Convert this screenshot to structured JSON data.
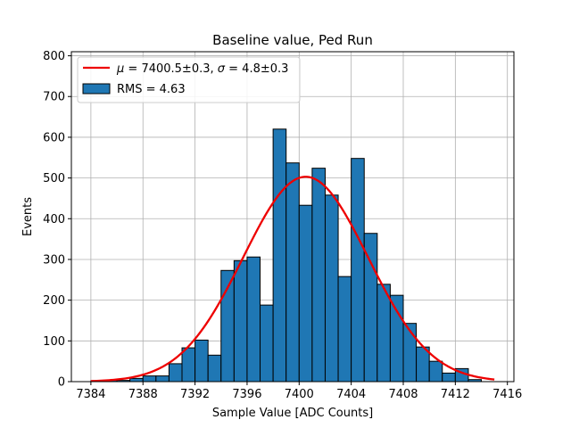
{
  "chart_data": {
    "type": "bar",
    "title": "Baseline value, Ped Run",
    "xlabel": "Sample Value [ADC Counts]",
    "ylabel": "Events",
    "xlim": [
      7382.5,
      7416.5
    ],
    "ylim": [
      0,
      810
    ],
    "xticks": [
      7384,
      7388,
      7392,
      7396,
      7400,
      7404,
      7408,
      7412,
      7416
    ],
    "yticks": [
      0,
      100,
      200,
      300,
      400,
      500,
      600,
      700,
      800
    ],
    "grid": true,
    "legend_position": "top-left",
    "histogram": {
      "name": "RMS = 4.63",
      "color": "#1f77b4",
      "bin_edges": [
        7384,
        7385,
        7386,
        7387,
        7388,
        7389,
        7390,
        7391,
        7392,
        7393,
        7394,
        7395,
        7396,
        7397,
        7398,
        7399,
        7400,
        7401,
        7402,
        7403,
        7404,
        7405,
        7406,
        7407,
        7408,
        7409,
        7410,
        7411,
        7412,
        7413,
        7414
      ],
      "counts": [
        2,
        3,
        3,
        8,
        14,
        14,
        44,
        83,
        102,
        65,
        273,
        297,
        306,
        188,
        620,
        537,
        433,
        524,
        458,
        258,
        548,
        364,
        239,
        212,
        143,
        85,
        50,
        21,
        32,
        5
      ]
    },
    "fit": {
      "name": "$\\mu = 7400.5 \\pm 0.3$, $\\sigma = 4.8 \\pm 0.3$",
      "label_mu": "μ",
      "label_mu_value": " = 7400.5±0.3, ",
      "label_sigma": "σ",
      "label_sigma_value": " = 4.8±0.3",
      "color": "#ee0000",
      "mu": 7400.5,
      "sigma": 4.8,
      "amplitude": 503,
      "x_range": [
        7384,
        7415
      ]
    }
  }
}
